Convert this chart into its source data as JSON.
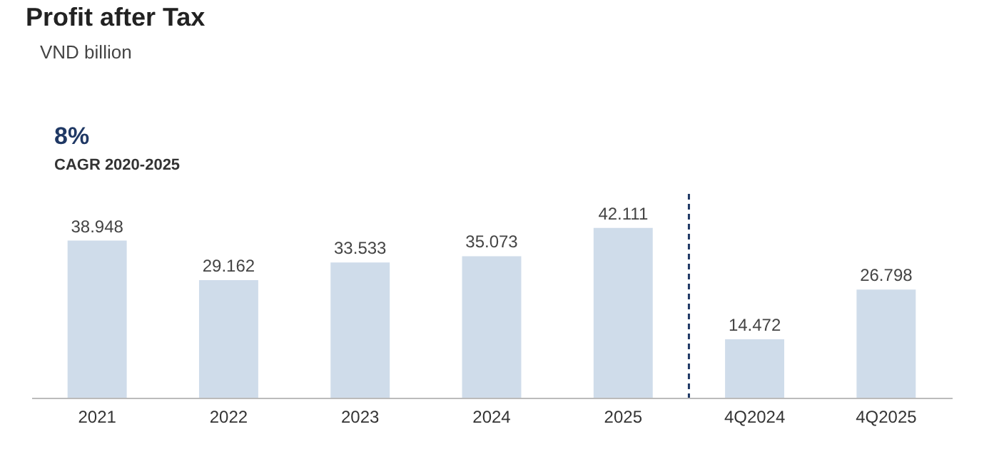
{
  "chart_data": {
    "type": "bar",
    "title": "Profit after Tax",
    "subtitle": "VND billion",
    "annotations": [
      "8%",
      "CAGR 2020-2025"
    ],
    "categories": [
      "2021",
      "2022",
      "2023",
      "2024",
      "2025",
      "4Q2024",
      "4Q2025"
    ],
    "values": [
      38.948,
      29.162,
      33.533,
      35.073,
      42.111,
      14.472,
      26.798
    ],
    "color": "#cfdcea",
    "data_labels": true,
    "ref_lines": [
      {
        "axis": "x",
        "value": "4Q2024",
        "line_style": "dashed",
        "color": "#1f3864"
      }
    ]
  }
}
